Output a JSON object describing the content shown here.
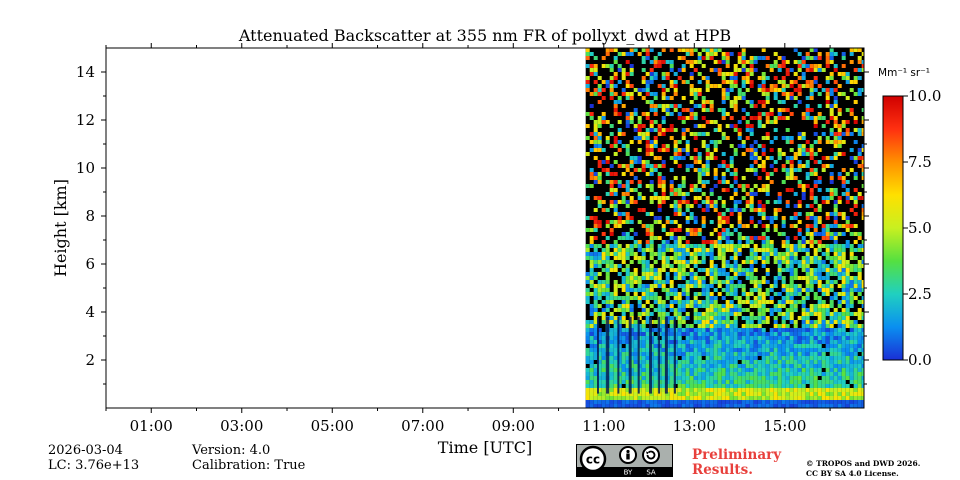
{
  "chart_data": {
    "type": "heatmap",
    "title": "Attenuated Backscatter at 355 nm FR of pollyxt_dwd at HPB",
    "xlabel": "Time [UTC]",
    "ylabel": "Height [km]",
    "x_range_hours": [
      0,
      16.75
    ],
    "ylim": [
      0,
      15
    ],
    "x_ticks": [
      {
        "hour": 1,
        "label": "01:00"
      },
      {
        "hour": 3,
        "label": "03:00"
      },
      {
        "hour": 5,
        "label": "05:00"
      },
      {
        "hour": 7,
        "label": "07:00"
      },
      {
        "hour": 9,
        "label": "09:00"
      },
      {
        "hour": 11,
        "label": "11:00"
      },
      {
        "hour": 13,
        "label": "13:00"
      },
      {
        "hour": 15,
        "label": "15:00"
      }
    ],
    "y_ticks": [
      {
        "value": 2,
        "label": "2"
      },
      {
        "value": 4,
        "label": "4"
      },
      {
        "value": 6,
        "label": "6"
      },
      {
        "value": 8,
        "label": "8"
      },
      {
        "value": 10,
        "label": "10"
      },
      {
        "value": 12,
        "label": "12"
      },
      {
        "value": 14,
        "label": "14"
      }
    ],
    "data_start_hour": 10.6,
    "data_end_hour": 16.75,
    "colorbar": {
      "label": "Mm⁻¹ sr⁻¹",
      "min": 0.0,
      "max": 10.0,
      "ticks": [
        {
          "value": 0.0,
          "label": "0.0"
        },
        {
          "value": 2.5,
          "label": "2.5"
        },
        {
          "value": 5.0,
          "label": "5.0"
        },
        {
          "value": 7.5,
          "label": "7.5"
        },
        {
          "value": 10.0,
          "label": "10.0"
        }
      ],
      "colors": [
        "#1a2fd6",
        "#0a8ff0",
        "#20d0c0",
        "#55e040",
        "#c8f020",
        "#ffe000",
        "#ff9000",
        "#ff3010",
        "#d00000"
      ]
    }
  },
  "info": {
    "date": "2026-03-04",
    "lc": "LC: 3.76e+13",
    "version": "Version: 4.0",
    "calibration": "Calibration: True"
  },
  "license": {
    "cc": "cc",
    "by": "BY",
    "sa": "SA",
    "preliminary_line1": "Preliminary",
    "preliminary_line2": "Results.",
    "copyright_line1": "© TROPOS and DWD 2026.",
    "copyright_line2": "CC BY SA 4.0 License."
  }
}
